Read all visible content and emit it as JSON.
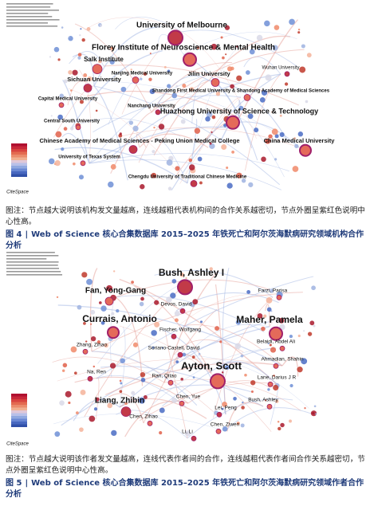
{
  "figures": [
    {
      "logo": "CiteSpace",
      "nodes": [
        "University of Melbourne",
        "Florey Institute of Neuroscience & Mental Health",
        "Salk Institute",
        "Wuhan University",
        "Nanjing Medical University",
        "Jilin University",
        "Sichuan University",
        "Shandong First Medical University & Shandong Academy of Medical Sciences",
        "Capital Medical University",
        "Nanchang University",
        "Huazhong University of Science & Technology",
        "Central South University",
        "Chinese Academy of Medical Sciences - Peking Union Medical College",
        "China Medical University",
        "University of Texas System",
        "Chengdu University of Traditional Chinese Medicine"
      ],
      "note": "图注：节点越大说明该机构发文量越高，连线越粗代表机构间的合作关系越密切，节点外圈呈紫红色说明中心性高。",
      "caption": {
        "number": "图 4",
        "separator": "|",
        "text": "Web of Science 核心合集数据库 2015–2025 年铁死亡和阿尔茨海默病研究领域机构合作分析"
      }
    },
    {
      "logo": "CiteSpace",
      "nodes": [
        "Bush, Ashley I",
        "Farzi, Parisa",
        "Fan, Yong-Gang",
        "Devos, David",
        "Currais, Antonio",
        "Maher, Pamela",
        "Fischer, Wolfgang",
        "Belaidi, Abdel Ali",
        "Zhang, Zihao",
        "Soriano-Castell, David",
        "Ahmadian, Shahin",
        "Ayton, Scott",
        "Na, Ren",
        "Ran, Qitao",
        "Lane, Darius J R",
        "Liang, Zhibin",
        "Chen, Yue",
        "Bush, Ashley",
        "Lei, Peng",
        "Chen, Zihao",
        "Chen, Ziwen",
        "Li, Li"
      ],
      "note": "图注：节点越大说明该作者发文量越高，连线代表作者间的合作，连线越粗代表作者间合作关系越密切，节点外圈呈紫红色说明中心性高。",
      "caption": {
        "number": "图 5",
        "separator": "|",
        "text": "Web of Science 核心合集数据库 2015–2025 年铁死亡和阿尔茨海默病研究领域作者合作分析"
      }
    }
  ]
}
